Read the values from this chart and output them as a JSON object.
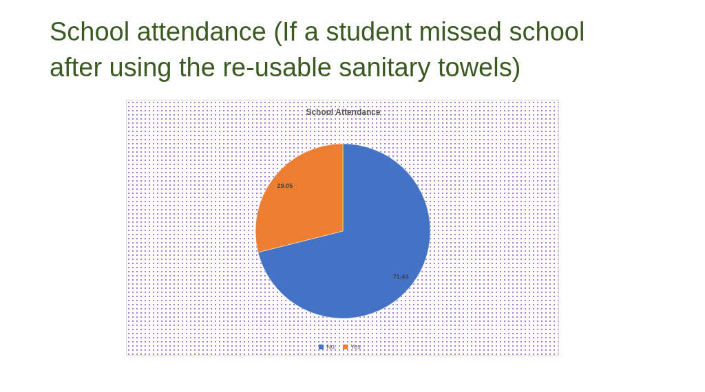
{
  "chart_data": {
    "type": "pie",
    "title": "School attendance (If a student missed school after using the re-usable sanitary towels)",
    "subtitle": "School Attendance",
    "categories": [
      "No.",
      "Yes"
    ],
    "values": [
      71.43,
      29.05
    ],
    "colors": [
      "#4472c4",
      "#ed7d31"
    ],
    "data_labels": true,
    "legend": "bottom"
  }
}
